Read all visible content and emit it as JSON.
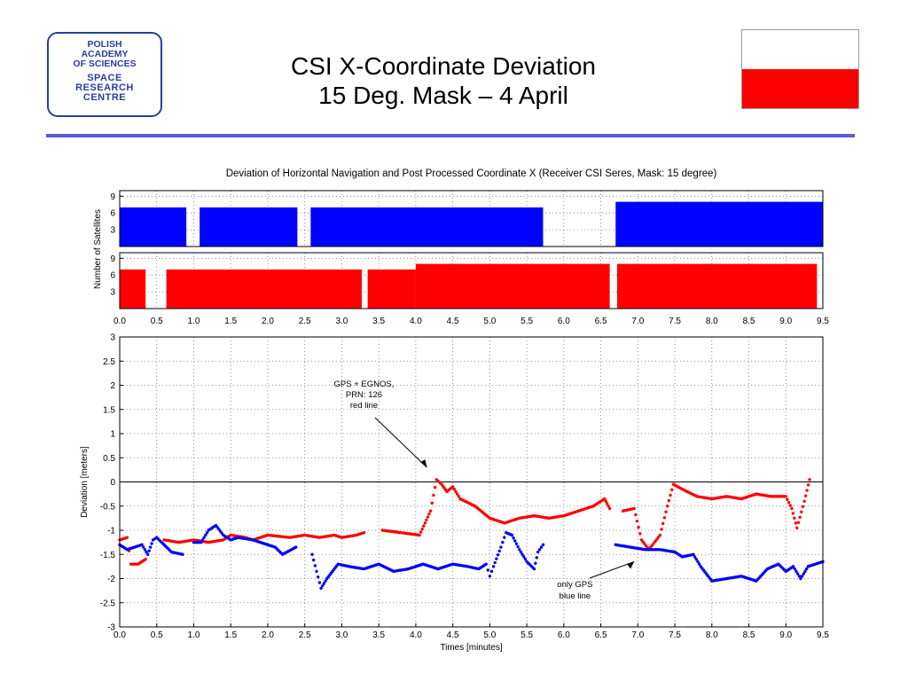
{
  "logo": {
    "lines_top": [
      "POLISH",
      "ACADEMY",
      "OF SCIENCES"
    ],
    "lines_bottom": [
      "SPACE",
      "RESEARCH",
      "CENTRE"
    ]
  },
  "slide": {
    "title_line1": "CSI X-Coordinate Deviation",
    "title_line2": "15 Deg. Mask – 4 April"
  },
  "flag": {
    "top_color": "#ffffff",
    "bottom_color": "#ff0000"
  },
  "colors": {
    "rule": "#5b5bd6",
    "gps": "#0000ff",
    "egnos": "#ff0000"
  },
  "chart_data": [
    {
      "type": "bar",
      "title": "Deviation of Horizontal Navigation and Post Processed Coordinate X (Receiver CSI Seres, Mask: 15 degree)",
      "ylabel": "Number of Satellites",
      "xlim": [
        0,
        9.5
      ],
      "ylim": [
        0,
        10
      ],
      "yticks": [
        3,
        6,
        9
      ],
      "grid": true,
      "series": [
        {
          "color": "#0000ff",
          "segments": [
            {
              "x0": 0.0,
              "x1": 0.9,
              "y": 7
            },
            {
              "x0": 1.08,
              "x1": 2.4,
              "y": 7
            },
            {
              "x0": 2.58,
              "x1": 5.72,
              "y": 7
            },
            {
              "x0": 6.7,
              "x1": 9.5,
              "y": 8
            }
          ]
        },
        {
          "color": "#ff0000",
          "segments": [
            {
              "x0": 0.0,
              "x1": 0.35,
              "y": 7
            },
            {
              "x0": 0.63,
              "x1": 3.27,
              "y": 7
            },
            {
              "x0": 3.35,
              "x1": 4.0,
              "y": 7
            },
            {
              "x0": 4.0,
              "x1": 6.62,
              "y": 8
            },
            {
              "x0": 6.72,
              "x1": 9.42,
              "y": 8
            }
          ]
        }
      ]
    },
    {
      "type": "scatter",
      "xlabel": "Times [minutes]",
      "ylabel": "Deviation [meters]",
      "xlim": [
        0,
        9.5
      ],
      "ylim": [
        -3,
        3
      ],
      "xticks": [
        "0.0",
        "0.5",
        "1.0",
        "1.5",
        "2.0",
        "2.5",
        "3.0",
        "3.5",
        "4.0",
        "4.5",
        "5.0",
        "5.5",
        "6.0",
        "6.5",
        "7.0",
        "7.5",
        "8.0",
        "8.5",
        "9.0",
        "9.5"
      ],
      "yticks": [
        "3",
        "2.5",
        "2",
        "1.5",
        "1",
        "0.5",
        "0",
        "-0.5",
        "-1",
        "-1.5",
        "-2",
        "-2.5",
        "-3"
      ],
      "grid": true,
      "series": [
        {
          "color": "#ff0000",
          "segments": [
            [
              [
                0.0,
                -1.2
              ],
              [
                0.1,
                -1.15
              ],
              [
                0.15,
                -1.7
              ],
              [
                0.25,
                -1.7
              ],
              [
                0.35,
                -1.6
              ]
            ],
            [
              [
                0.6,
                -1.2
              ],
              [
                0.8,
                -1.25
              ],
              [
                1.0,
                -1.2
              ],
              [
                1.2,
                -1.25
              ],
              [
                1.4,
                -1.2
              ],
              [
                1.5,
                -1.1
              ],
              [
                1.7,
                -1.15
              ],
              [
                1.8,
                -1.2
              ],
              [
                2.0,
                -1.1
              ],
              [
                2.3,
                -1.15
              ],
              [
                2.5,
                -1.1
              ],
              [
                2.7,
                -1.15
              ],
              [
                2.9,
                -1.1
              ],
              [
                3.0,
                -1.15
              ],
              [
                3.2,
                -1.1
              ],
              [
                3.3,
                -1.05
              ]
            ],
            [
              [
                3.55,
                -1.0
              ],
              [
                3.8,
                -1.05
              ],
              [
                4.05,
                -1.1
              ],
              [
                4.2,
                -0.6
              ],
              [
                4.28,
                0.05
              ],
              [
                4.35,
                -0.05
              ],
              [
                4.42,
                -0.2
              ],
              [
                4.5,
                -0.1
              ],
              [
                4.6,
                -0.35
              ],
              [
                4.8,
                -0.5
              ],
              [
                5.0,
                -0.75
              ],
              [
                5.2,
                -0.85
              ],
              [
                5.4,
                -0.75
              ],
              [
                5.6,
                -0.7
              ],
              [
                5.8,
                -0.75
              ],
              [
                6.0,
                -0.7
              ],
              [
                6.2,
                -0.6
              ],
              [
                6.4,
                -0.5
              ],
              [
                6.55,
                -0.35
              ],
              [
                6.62,
                -0.55
              ]
            ],
            [
              [
                6.8,
                -0.6
              ],
              [
                6.95,
                -0.55
              ],
              [
                7.05,
                -1.2
              ],
              [
                7.15,
                -1.4
              ],
              [
                7.3,
                -1.1
              ],
              [
                7.4,
                -0.5
              ],
              [
                7.48,
                -0.05
              ],
              [
                7.6,
                -0.15
              ],
              [
                7.8,
                -0.3
              ],
              [
                8.0,
                -0.35
              ],
              [
                8.2,
                -0.3
              ],
              [
                8.4,
                -0.35
              ],
              [
                8.6,
                -0.25
              ],
              [
                8.8,
                -0.3
              ],
              [
                9.0,
                -0.3
              ],
              [
                9.08,
                -0.55
              ],
              [
                9.15,
                -0.95
              ],
              [
                9.25,
                -0.4
              ],
              [
                9.32,
                0.05
              ]
            ]
          ]
        },
        {
          "color": "#0000ff",
          "segments": [
            [
              [
                0.0,
                -1.3
              ],
              [
                0.1,
                -1.4
              ],
              [
                0.2,
                -1.35
              ],
              [
                0.3,
                -1.3
              ],
              [
                0.38,
                -1.5
              ],
              [
                0.45,
                -1.2
              ],
              [
                0.5,
                -1.15
              ],
              [
                0.6,
                -1.3
              ],
              [
                0.7,
                -1.45
              ],
              [
                0.85,
                -1.5
              ]
            ],
            [
              [
                1.0,
                -1.25
              ],
              [
                1.1,
                -1.25
              ],
              [
                1.2,
                -1.0
              ],
              [
                1.3,
                -0.9
              ],
              [
                1.4,
                -1.1
              ],
              [
                1.5,
                -1.2
              ],
              [
                1.6,
                -1.15
              ],
              [
                1.8,
                -1.2
              ],
              [
                2.0,
                -1.3
              ],
              [
                2.1,
                -1.35
              ],
              [
                2.2,
                -1.5
              ],
              [
                2.38,
                -1.35
              ]
            ],
            [
              [
                2.6,
                -1.5
              ],
              [
                2.72,
                -2.2
              ],
              [
                2.8,
                -2.0
              ],
              [
                2.95,
                -1.7
              ],
              [
                3.1,
                -1.75
              ],
              [
                3.3,
                -1.8
              ],
              [
                3.5,
                -1.7
              ],
              [
                3.7,
                -1.85
              ],
              [
                3.9,
                -1.8
              ],
              [
                4.1,
                -1.7
              ],
              [
                4.3,
                -1.8
              ],
              [
                4.5,
                -1.7
              ],
              [
                4.7,
                -1.75
              ],
              [
                4.85,
                -1.8
              ],
              [
                4.95,
                -1.7
              ],
              [
                5.0,
                -1.95
              ],
              [
                5.05,
                -1.75
              ],
              [
                5.15,
                -1.35
              ],
              [
                5.22,
                -1.05
              ],
              [
                5.3,
                -1.1
              ],
              [
                5.4,
                -1.4
              ],
              [
                5.5,
                -1.65
              ],
              [
                5.6,
                -1.8
              ],
              [
                5.65,
                -1.45
              ],
              [
                5.72,
                -1.3
              ]
            ],
            [
              [
                6.7,
                -1.3
              ],
              [
                6.9,
                -1.35
              ],
              [
                7.1,
                -1.4
              ],
              [
                7.3,
                -1.4
              ],
              [
                7.5,
                -1.45
              ],
              [
                7.6,
                -1.55
              ],
              [
                7.75,
                -1.5
              ],
              [
                7.85,
                -1.75
              ],
              [
                8.0,
                -2.05
              ],
              [
                8.2,
                -2.0
              ],
              [
                8.4,
                -1.95
              ],
              [
                8.6,
                -2.05
              ],
              [
                8.75,
                -1.8
              ],
              [
                8.9,
                -1.7
              ],
              [
                9.0,
                -1.85
              ],
              [
                9.1,
                -1.75
              ],
              [
                9.2,
                -2.0
              ],
              [
                9.3,
                -1.75
              ],
              [
                9.4,
                -1.7
              ],
              [
                9.5,
                -1.65
              ]
            ]
          ]
        }
      ],
      "annotations": {
        "egnos": [
          "GPS + EGNOS,",
          "PRN: 126",
          "red line"
        ],
        "gps": [
          "only GPS",
          "blue line"
        ]
      }
    }
  ]
}
